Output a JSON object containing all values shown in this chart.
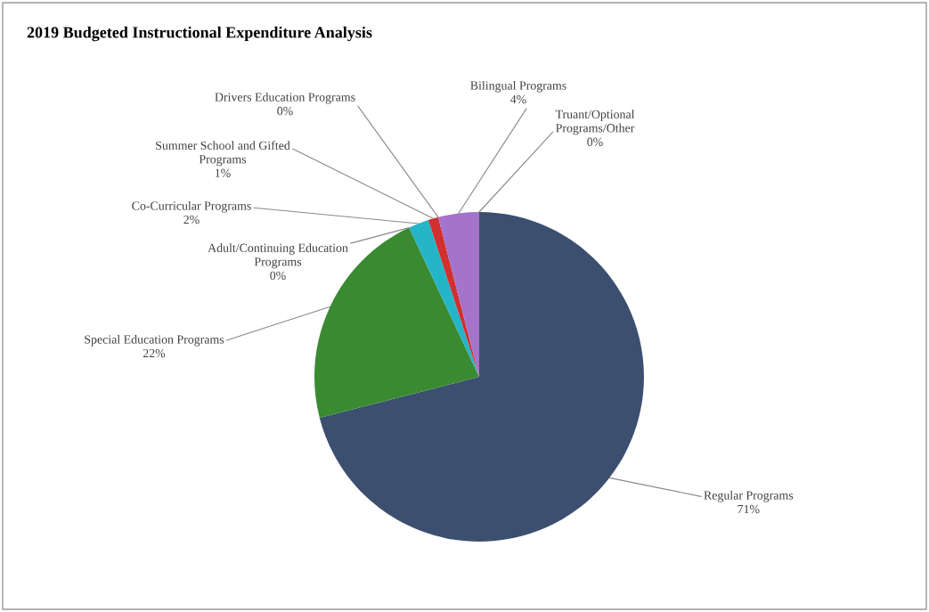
{
  "chart_data": {
    "type": "pie",
    "title": "2019 Budgeted Instructional Expenditure Analysis",
    "categories": [
      "Regular Programs",
      "Special Education Programs",
      "Adult/Continuing Education Programs",
      "Co-Curricular Programs",
      "Summer School and Gifted Programs",
      "Drivers Education Programs",
      "Bilingual Programs",
      "Truant/Optional Programs/Other"
    ],
    "values": [
      71,
      22,
      0,
      2,
      1,
      0,
      4,
      0
    ],
    "value_labels": [
      "71%",
      "22%",
      "0%",
      "2%",
      "1%",
      "0%",
      "4%",
      "0%"
    ],
    "colors": [
      "#3c4f70",
      "#3a8a32",
      "#e07b20",
      "#25b5c8",
      "#d0302e",
      "#7a7a7a",
      "#a374c9",
      "#8fb04a"
    ],
    "legend": false
  }
}
